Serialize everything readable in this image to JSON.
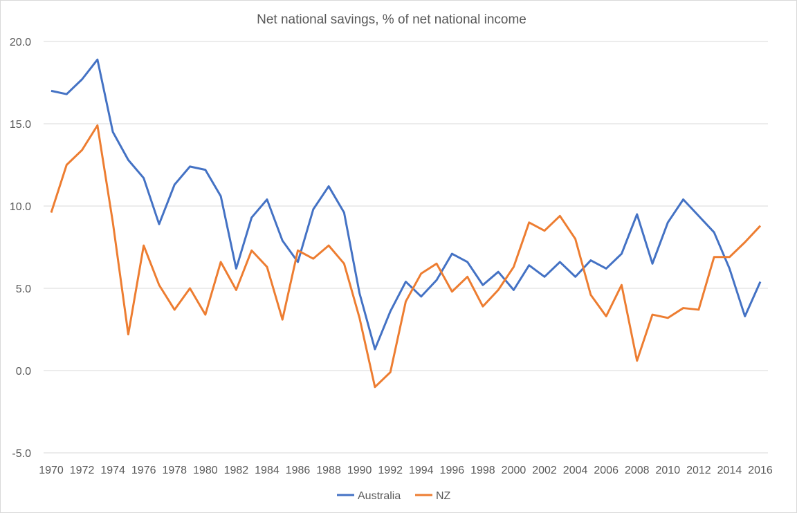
{
  "chart_data": {
    "type": "line",
    "title": "Net national savings, % of net national income",
    "xlabel": "",
    "ylabel": "",
    "ylim": [
      -5,
      20
    ],
    "yticks": [
      "-5.0",
      "0.0",
      "5.0",
      "10.0",
      "15.0",
      "20.0"
    ],
    "grid": true,
    "legend": "bottom",
    "x": [
      1970,
      1971,
      1972,
      1973,
      1974,
      1975,
      1976,
      1977,
      1978,
      1979,
      1980,
      1981,
      1982,
      1983,
      1984,
      1985,
      1986,
      1987,
      1988,
      1989,
      1990,
      1991,
      1992,
      1993,
      1994,
      1995,
      1996,
      1997,
      1998,
      1999,
      2000,
      2001,
      2002,
      2003,
      2004,
      2005,
      2006,
      2007,
      2008,
      2009,
      2010,
      2011,
      2012,
      2013,
      2014,
      2015,
      2016
    ],
    "xtick_labels": [
      "1970",
      "1972",
      "1974",
      "1976",
      "1978",
      "1980",
      "1982",
      "1984",
      "1986",
      "1988",
      "1990",
      "1992",
      "1994",
      "1996",
      "1998",
      "2000",
      "2002",
      "2004",
      "2006",
      "2008",
      "2010",
      "2012",
      "2014",
      "2016"
    ],
    "series": [
      {
        "name": "Australia",
        "color": "#4472c4",
        "values": [
          17.0,
          16.8,
          17.7,
          18.9,
          14.5,
          12.8,
          11.7,
          8.9,
          11.3,
          12.4,
          12.2,
          10.6,
          6.2,
          9.3,
          10.4,
          7.9,
          6.6,
          9.8,
          11.2,
          9.6,
          4.7,
          1.3,
          3.6,
          5.4,
          4.5,
          5.5,
          7.1,
          6.6,
          5.2,
          6.0,
          4.9,
          6.4,
          5.7,
          6.6,
          5.7,
          6.7,
          6.2,
          7.1,
          9.5,
          6.5,
          9.0,
          10.4,
          9.4,
          8.4,
          6.2,
          3.3,
          5.4
        ]
      },
      {
        "name": "NZ",
        "color": "#ed7d31",
        "values": [
          9.6,
          12.5,
          13.4,
          14.9,
          9.0,
          2.2,
          7.6,
          5.2,
          3.7,
          5.0,
          3.4,
          6.6,
          4.9,
          7.3,
          6.3,
          3.1,
          7.3,
          6.8,
          7.6,
          6.5,
          3.2,
          -1.0,
          -0.1,
          4.2,
          5.9,
          6.5,
          4.8,
          5.7,
          3.9,
          4.9,
          6.3,
          9.0,
          8.5,
          9.4,
          8.0,
          4.6,
          3.3,
          5.2,
          0.6,
          3.4,
          3.2,
          3.8,
          3.7,
          6.9,
          6.9,
          7.8,
          8.8
        ]
      }
    ]
  }
}
